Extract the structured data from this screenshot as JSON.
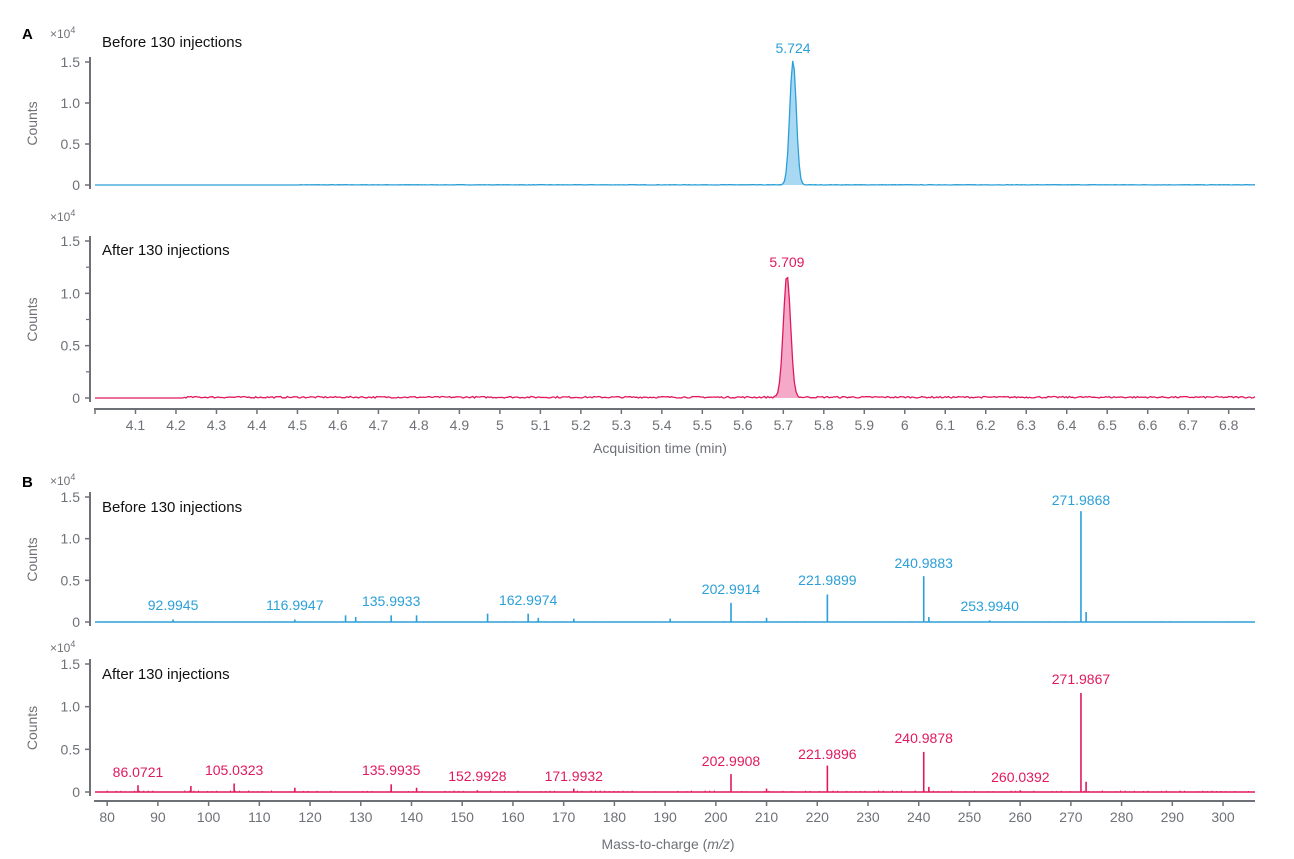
{
  "colors": {
    "before": "#2a9fd8",
    "after": "#e0195f",
    "before_fill": "#a9d9f2",
    "after_fill": "#f4a9c8",
    "axis": "#6e7177"
  },
  "chart_data": [
    {
      "panel": "A",
      "type": "line",
      "title": "Before 130 injections",
      "xlabel": "Acquisition time (min)",
      "ylabel": "Counts",
      "y_multiplier": "×10",
      "y_multiplier_exp": "4",
      "xlim": [
        4.0,
        6.865
      ],
      "ylim": [
        0,
        1.55
      ],
      "yticks": [
        "0",
        "0.5",
        "1.0",
        "1.5"
      ],
      "series": [
        {
          "name": "Before 130 injections",
          "color": "before",
          "peak_x": 5.724,
          "peak_y": 1.52,
          "peak_width": 0.008
        }
      ],
      "annotations": [
        {
          "text": "5.724",
          "x": 5.724,
          "y": 1.52
        }
      ]
    },
    {
      "panel": "A",
      "type": "line",
      "title": "After 130 injections",
      "xlabel": "Acquisition time (min)",
      "ylabel": "Counts",
      "y_multiplier": "×10",
      "y_multiplier_exp": "4",
      "xlim": [
        4.0,
        6.865
      ],
      "ylim": [
        0,
        1.55
      ],
      "yticks": [
        "0",
        "0.5",
        "1.0",
        "1.5"
      ],
      "xticks": [
        "4.1",
        "4.2",
        "4.3",
        "4.4",
        "4.5",
        "4.6",
        "4.7",
        "4.8",
        "4.9",
        "5",
        "5.1",
        "5.2",
        "5.3",
        "5.4",
        "5.5",
        "5.6",
        "5.7",
        "5.8",
        "5.9",
        "6",
        "6.1",
        "6.2",
        "6.3",
        "6.4",
        "6.5",
        "6.6",
        "6.7",
        "6.8"
      ],
      "series": [
        {
          "name": "After 130 injections",
          "color": "after",
          "peak_x": 5.709,
          "peak_y": 1.16,
          "peak_width": 0.009
        }
      ],
      "annotations": [
        {
          "text": "5.709",
          "x": 5.709,
          "y": 1.16
        }
      ]
    },
    {
      "panel": "B",
      "type": "bar",
      "title": "Before 130 injections",
      "xlabel": "Mass-to-charge (m/z)",
      "ylabel": "Counts",
      "y_multiplier": "×10",
      "y_multiplier_exp": "4",
      "xlim": [
        77.6,
        306.3
      ],
      "ylim": [
        0,
        1.55
      ],
      "yticks": [
        "0",
        "0.5",
        "1.0",
        "1.5"
      ],
      "peaks": [
        {
          "mz": 92.9945,
          "y": 0.03,
          "label": "92.9945"
        },
        {
          "mz": 116.9947,
          "y": 0.03,
          "label": "116.9947"
        },
        {
          "mz": 127.0,
          "y": 0.08
        },
        {
          "mz": 129.0,
          "y": 0.06
        },
        {
          "mz": 135.9933,
          "y": 0.08,
          "label": "135.9933"
        },
        {
          "mz": 141.0,
          "y": 0.08
        },
        {
          "mz": 155.0,
          "y": 0.1
        },
        {
          "mz": 162.9974,
          "y": 0.1,
          "label": "162.9974"
        },
        {
          "mz": 165.0,
          "y": 0.05
        },
        {
          "mz": 172.0,
          "y": 0.04
        },
        {
          "mz": 191.0,
          "y": 0.04
        },
        {
          "mz": 202.9914,
          "y": 0.23,
          "label": "202.9914"
        },
        {
          "mz": 210.0,
          "y": 0.05
        },
        {
          "mz": 221.9899,
          "y": 0.33,
          "label": "221.9899"
        },
        {
          "mz": 240.9883,
          "y": 0.55,
          "label": "240.9883"
        },
        {
          "mz": 242.0,
          "y": 0.06
        },
        {
          "mz": 253.994,
          "y": 0.02,
          "label": "253.9940"
        },
        {
          "mz": 271.9868,
          "y": 1.33,
          "label": "271.9868"
        },
        {
          "mz": 273.0,
          "y": 0.12
        }
      ]
    },
    {
      "panel": "B",
      "type": "bar",
      "title": "After 130 injections",
      "xlabel": "Mass-to-charge (m/z)",
      "ylabel": "Counts",
      "y_multiplier": "×10",
      "y_multiplier_exp": "4",
      "xlim": [
        77.6,
        306.3
      ],
      "ylim": [
        0,
        1.55
      ],
      "yticks": [
        "0",
        "0.5",
        "1.0",
        "1.5"
      ],
      "xticks": [
        "80",
        "90",
        "100",
        "110",
        "120",
        "130",
        "140",
        "150",
        "160",
        "170",
        "180",
        "190",
        "200",
        "210",
        "220",
        "230",
        "240",
        "250",
        "260",
        "270",
        "280",
        "290",
        "300"
      ],
      "peaks": [
        {
          "mz": 86.0721,
          "y": 0.08,
          "label": "86.0721"
        },
        {
          "mz": 96.5,
          "y": 0.07
        },
        {
          "mz": 105.0323,
          "y": 0.1,
          "label": "105.0323"
        },
        {
          "mz": 117.0,
          "y": 0.05
        },
        {
          "mz": 135.9935,
          "y": 0.09,
          "label": "135.9935"
        },
        {
          "mz": 141.0,
          "y": 0.05
        },
        {
          "mz": 152.9928,
          "y": 0.02,
          "label": "152.9928"
        },
        {
          "mz": 171.9932,
          "y": 0.04,
          "label": "171.9932"
        },
        {
          "mz": 202.9908,
          "y": 0.21,
          "label": "202.9908"
        },
        {
          "mz": 210.0,
          "y": 0.04
        },
        {
          "mz": 221.9896,
          "y": 0.31,
          "label": "221.9896"
        },
        {
          "mz": 240.9878,
          "y": 0.47,
          "label": "240.9878"
        },
        {
          "mz": 242.0,
          "y": 0.06
        },
        {
          "mz": 260.0392,
          "y": 0.02,
          "label": "260.0392"
        },
        {
          "mz": 271.9867,
          "y": 1.16,
          "label": "271.9867"
        },
        {
          "mz": 273.0,
          "y": 0.12
        }
      ]
    }
  ],
  "panels": {
    "a_letter": "A",
    "b_letter": "B"
  },
  "axis_titles": {
    "time": "Acquisition time (min)",
    "mz_prefix": "Mass-to-charge (",
    "mz_italic": "m/z",
    "mz_suffix": ")",
    "counts": "Counts"
  }
}
